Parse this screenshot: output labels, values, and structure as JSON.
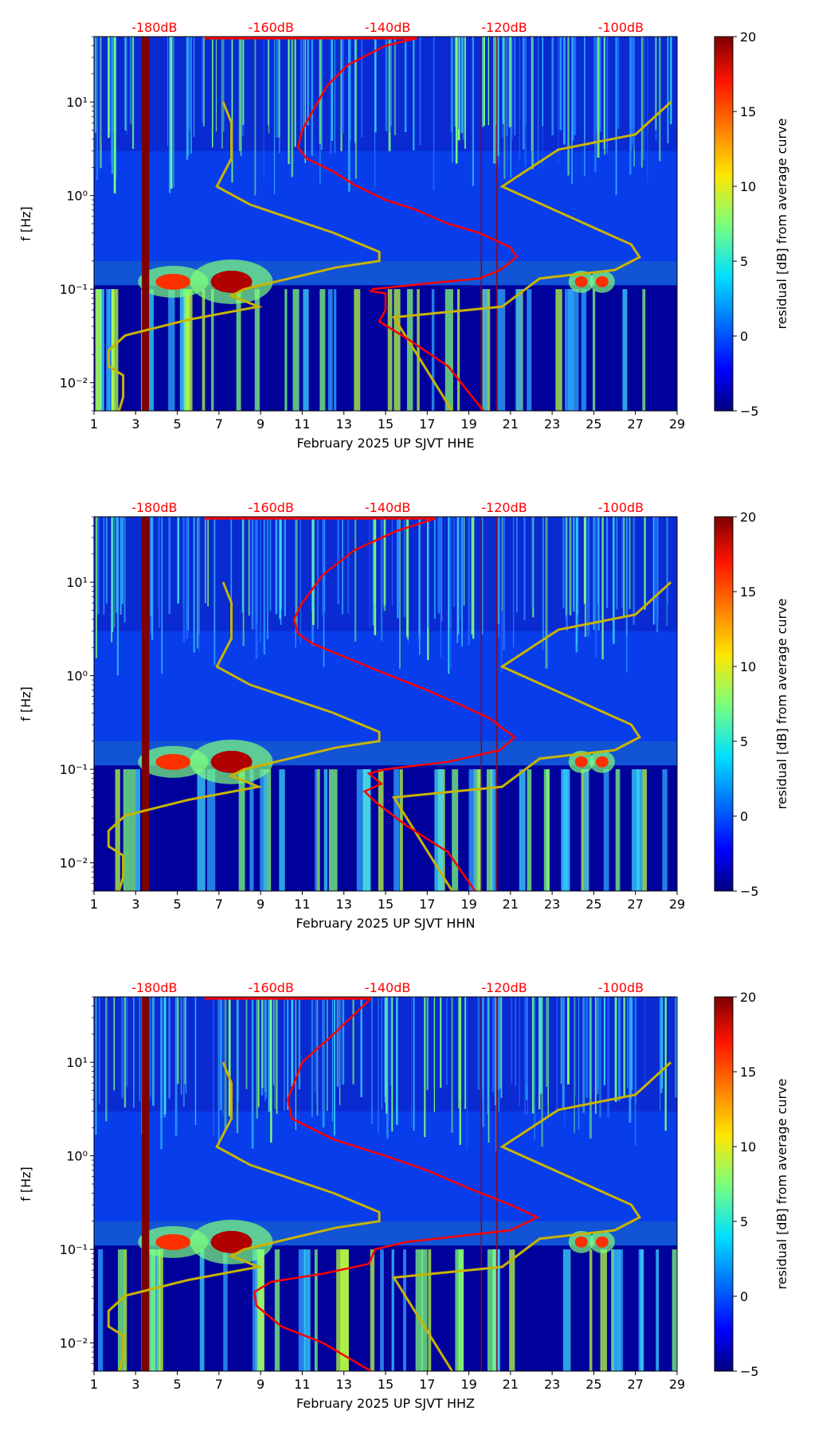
{
  "chart_data": [
    {
      "type": "heatmap",
      "title": "",
      "xlabel": "February 2025 UP SJVT  HHE",
      "ylabel": "f [Hz]",
      "colorbar_label": "residual [dB] from average curve",
      "colorbar_range": [
        -5,
        20
      ],
      "colorbar_ticks": [
        "20",
        "15",
        "10",
        "5",
        "0",
        "−5"
      ],
      "x_ticks": [
        "1",
        "3",
        "5",
        "7",
        "9",
        "11",
        "13",
        "15",
        "17",
        "19",
        "21",
        "23",
        "25",
        "27",
        "29"
      ],
      "xlim": [
        1,
        29
      ],
      "y_ticks": [
        "10¹",
        "10⁰",
        "10⁻¹",
        "10⁻²"
      ],
      "ylim": [
        0.005,
        50
      ],
      "y_scale": "log",
      "top_axis_labels": [
        {
          "label": "-180dB",
          "day": 3.9
        },
        {
          "label": "-160dB",
          "day": 9.5
        },
        {
          "label": "-140dB",
          "day": 15.1
        },
        {
          "label": "-120dB",
          "day": 20.7
        },
        {
          "label": "-100dB",
          "day": 26.3
        }
      ],
      "series": [
        {
          "name": "low noise model",
          "color": "#c8b400",
          "points": [
            [
              7.2,
              10
            ],
            [
              7.6,
              6
            ],
            [
              7.6,
              2.5
            ],
            [
              6.9,
              1.25
            ],
            [
              8.5,
              0.8
            ],
            [
              12.5,
              0.4
            ],
            [
              14.7,
              0.25
            ],
            [
              14.7,
              0.2
            ],
            [
              12.6,
              0.17
            ],
            [
              8.2,
              0.1
            ],
            [
              7.6,
              0.085
            ],
            [
              8.9,
              0.065
            ],
            [
              5.5,
              0.047
            ],
            [
              2.5,
              0.032
            ],
            [
              1.7,
              0.022
            ],
            [
              1.7,
              0.015
            ],
            [
              2.4,
              0.012
            ],
            [
              2.4,
              0.007
            ],
            [
              2.2,
              0.005
            ]
          ]
        },
        {
          "name": "high noise model",
          "color": "#c8b400",
          "points": [
            [
              28.7,
              10
            ],
            [
              27,
              4.5
            ],
            [
              23.3,
              3.1
            ],
            [
              20.6,
              1.25
            ],
            [
              26.8,
              0.3
            ],
            [
              27.2,
              0.22
            ],
            [
              26,
              0.16
            ],
            [
              22.4,
              0.13
            ],
            [
              20.6,
              0.065
            ],
            [
              15.4,
              0.05
            ],
            [
              18.2,
              0.005
            ]
          ]
        },
        {
          "name": "average curve",
          "color": "#ff0000",
          "points": [
            [
              16.5,
              48
            ],
            [
              15,
              40
            ],
            [
              13.2,
              25
            ],
            [
              12.2,
              15
            ],
            [
              11.5,
              8
            ],
            [
              11,
              5
            ],
            [
              10.8,
              3.3
            ],
            [
              11.2,
              2.5
            ],
            [
              12.5,
              1.8
            ],
            [
              13.5,
              1.3
            ],
            [
              15,
              0.9
            ],
            [
              16.5,
              0.7
            ],
            [
              18,
              0.5
            ],
            [
              19.5,
              0.4
            ],
            [
              21,
              0.28
            ],
            [
              21.3,
              0.22
            ],
            [
              20.5,
              0.16
            ],
            [
              19.5,
              0.13
            ],
            [
              17,
              0.115
            ],
            [
              14.4,
              0.1
            ],
            [
              14.3,
              0.095
            ],
            [
              15,
              0.09
            ],
            [
              15,
              0.06
            ],
            [
              14.7,
              0.045
            ],
            [
              16,
              0.03
            ],
            [
              18,
              0.015
            ],
            [
              19.7,
              0.005
            ]
          ]
        }
      ]
    },
    {
      "type": "heatmap",
      "title": "",
      "xlabel": "February 2025 UP SJVT  HHN",
      "ylabel": "f [Hz]",
      "colorbar_label": "residual [dB] from average curve",
      "colorbar_range": [
        -5,
        20
      ],
      "colorbar_ticks": [
        "20",
        "15",
        "10",
        "5",
        "0",
        "−5"
      ],
      "x_ticks": [
        "1",
        "3",
        "5",
        "7",
        "9",
        "11",
        "13",
        "15",
        "17",
        "19",
        "21",
        "23",
        "25",
        "27",
        "29"
      ],
      "xlim": [
        1,
        29
      ],
      "y_ticks": [
        "10¹",
        "10⁰",
        "10⁻¹",
        "10⁻²"
      ],
      "ylim": [
        0.005,
        50
      ],
      "y_scale": "log",
      "top_axis_labels": [
        {
          "label": "-180dB",
          "day": 3.9
        },
        {
          "label": "-160dB",
          "day": 9.5
        },
        {
          "label": "-140dB",
          "day": 15.1
        },
        {
          "label": "-120dB",
          "day": 20.7
        },
        {
          "label": "-100dB",
          "day": 26.3
        }
      ],
      "series": [
        {
          "name": "low noise model",
          "color": "#c8b400",
          "points": [
            [
              7.2,
              10
            ],
            [
              7.6,
              6
            ],
            [
              7.6,
              2.5
            ],
            [
              6.9,
              1.25
            ],
            [
              8.5,
              0.8
            ],
            [
              12.5,
              0.4
            ],
            [
              14.7,
              0.25
            ],
            [
              14.7,
              0.2
            ],
            [
              12.6,
              0.17
            ],
            [
              8.2,
              0.1
            ],
            [
              7.6,
              0.085
            ],
            [
              8.9,
              0.065
            ],
            [
              5.5,
              0.047
            ],
            [
              2.5,
              0.032
            ],
            [
              1.7,
              0.022
            ],
            [
              1.7,
              0.015
            ],
            [
              2.4,
              0.012
            ],
            [
              2.4,
              0.007
            ],
            [
              2.2,
              0.005
            ]
          ]
        },
        {
          "name": "high noise model",
          "color": "#c8b400",
          "points": [
            [
              28.7,
              10
            ],
            [
              27,
              4.5
            ],
            [
              23.3,
              3.1
            ],
            [
              20.6,
              1.25
            ],
            [
              26.8,
              0.3
            ],
            [
              27.2,
              0.22
            ],
            [
              26,
              0.16
            ],
            [
              22.4,
              0.13
            ],
            [
              20.6,
              0.065
            ],
            [
              15.4,
              0.05
            ],
            [
              18.2,
              0.005
            ]
          ]
        },
        {
          "name": "average curve",
          "color": "#ff0000",
          "points": [
            [
              17.4,
              48
            ],
            [
              15.5,
              35
            ],
            [
              13.5,
              22
            ],
            [
              12,
              12
            ],
            [
              11,
              6
            ],
            [
              10.6,
              4
            ],
            [
              10.8,
              2.8
            ],
            [
              11.5,
              2.2
            ],
            [
              13,
              1.6
            ],
            [
              15,
              1.05
            ],
            [
              17,
              0.7
            ],
            [
              18.5,
              0.5
            ],
            [
              20,
              0.35
            ],
            [
              21.2,
              0.22
            ],
            [
              20.5,
              0.16
            ],
            [
              18,
              0.12
            ],
            [
              15,
              0.1
            ],
            [
              14.2,
              0.09
            ],
            [
              14.8,
              0.07
            ],
            [
              14,
              0.058
            ],
            [
              14.5,
              0.045
            ],
            [
              16,
              0.025
            ],
            [
              18,
              0.013
            ],
            [
              19.3,
              0.005
            ]
          ]
        }
      ]
    },
    {
      "type": "heatmap",
      "title": "",
      "xlabel": "February 2025 UP SJVT  HHZ",
      "ylabel": "f [Hz]",
      "colorbar_label": "residual [dB] from average curve",
      "colorbar_range": [
        -5,
        20
      ],
      "colorbar_ticks": [
        "20",
        "15",
        "10",
        "5",
        "0",
        "−5"
      ],
      "x_ticks": [
        "1",
        "3",
        "5",
        "7",
        "9",
        "11",
        "13",
        "15",
        "17",
        "19",
        "21",
        "23",
        "25",
        "27",
        "29"
      ],
      "xlim": [
        1,
        29
      ],
      "y_ticks": [
        "10¹",
        "10⁰",
        "10⁻¹",
        "10⁻²"
      ],
      "ylim": [
        0.005,
        50
      ],
      "y_scale": "log",
      "top_axis_labels": [
        {
          "label": "-180dB",
          "day": 3.9
        },
        {
          "label": "-160dB",
          "day": 9.5
        },
        {
          "label": "-140dB",
          "day": 15.1
        },
        {
          "label": "-120dB",
          "day": 20.7
        },
        {
          "label": "-100dB",
          "day": 26.3
        }
      ],
      "series": [
        {
          "name": "low noise model",
          "color": "#c8b400",
          "points": [
            [
              7.2,
              10
            ],
            [
              7.6,
              6
            ],
            [
              7.6,
              2.5
            ],
            [
              6.9,
              1.25
            ],
            [
              8.5,
              0.8
            ],
            [
              12.5,
              0.4
            ],
            [
              14.7,
              0.25
            ],
            [
              14.7,
              0.2
            ],
            [
              12.6,
              0.17
            ],
            [
              8.2,
              0.1
            ],
            [
              7.6,
              0.085
            ],
            [
              8.9,
              0.065
            ],
            [
              5.5,
              0.047
            ],
            [
              2.5,
              0.032
            ],
            [
              1.7,
              0.022
            ],
            [
              1.7,
              0.015
            ],
            [
              2.4,
              0.012
            ],
            [
              2.4,
              0.007
            ],
            [
              2.2,
              0.005
            ]
          ]
        },
        {
          "name": "high noise model",
          "color": "#c8b400",
          "points": [
            [
              28.7,
              10
            ],
            [
              27,
              4.5
            ],
            [
              23.3,
              3.1
            ],
            [
              20.6,
              1.25
            ],
            [
              26.8,
              0.3
            ],
            [
              27.2,
              0.22
            ],
            [
              26,
              0.16
            ],
            [
              22.4,
              0.13
            ],
            [
              20.6,
              0.065
            ],
            [
              15.4,
              0.05
            ],
            [
              18.2,
              0.005
            ]
          ]
        },
        {
          "name": "average curve",
          "color": "#ff0000",
          "points": [
            [
              14.3,
              48
            ],
            [
              12.5,
              20
            ],
            [
              11,
              10
            ],
            [
              10.3,
              4
            ],
            [
              10.5,
              2.5
            ],
            [
              12.5,
              1.5
            ],
            [
              15,
              1
            ],
            [
              17,
              0.7
            ],
            [
              19,
              0.45
            ],
            [
              21,
              0.3
            ],
            [
              22.3,
              0.22
            ],
            [
              21,
              0.16
            ],
            [
              16,
              0.12
            ],
            [
              14.5,
              0.1
            ],
            [
              14.2,
              0.07
            ],
            [
              12,
              0.055
            ],
            [
              9.5,
              0.045
            ],
            [
              8.7,
              0.035
            ],
            [
              8.8,
              0.025
            ],
            [
              10,
              0.015
            ],
            [
              12,
              0.01
            ],
            [
              14.3,
              0.005
            ]
          ]
        }
      ]
    }
  ]
}
